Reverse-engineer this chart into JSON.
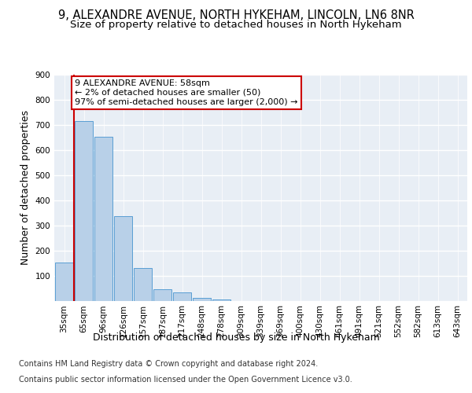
{
  "title_line1": "9, ALEXANDRE AVENUE, NORTH HYKEHAM, LINCOLN, LN6 8NR",
  "title_line2": "Size of property relative to detached houses in North Hykeham",
  "xlabel": "Distribution of detached houses by size in North Hykeham",
  "ylabel": "Number of detached properties",
  "categories": [
    "35sqm",
    "65sqm",
    "96sqm",
    "126sqm",
    "157sqm",
    "187sqm",
    "217sqm",
    "248sqm",
    "278sqm",
    "309sqm",
    "339sqm",
    "369sqm",
    "400sqm",
    "430sqm",
    "461sqm",
    "491sqm",
    "521sqm",
    "552sqm",
    "582sqm",
    "613sqm",
    "643sqm"
  ],
  "values": [
    152,
    715,
    652,
    338,
    130,
    45,
    32,
    12,
    5,
    0,
    0,
    0,
    0,
    0,
    0,
    0,
    0,
    0,
    0,
    0,
    0
  ],
  "bar_color": "#b8d0e8",
  "bar_edge_color": "#5a9fd4",
  "highlight_color": "#cc0000",
  "annotation_text": "9 ALEXANDRE AVENUE: 58sqm\n← 2% of detached houses are smaller (50)\n97% of semi-detached houses are larger (2,000) →",
  "annotation_box_color": "white",
  "annotation_box_edge_color": "#cc0000",
  "ylim": [
    0,
    900
  ],
  "yticks": [
    0,
    100,
    200,
    300,
    400,
    500,
    600,
    700,
    800,
    900
  ],
  "background_color": "#e8eef5",
  "footer_line1": "Contains HM Land Registry data © Crown copyright and database right 2024.",
  "footer_line2": "Contains public sector information licensed under the Open Government Licence v3.0.",
  "title_fontsize": 10.5,
  "subtitle_fontsize": 9.5,
  "axis_label_fontsize": 9,
  "tick_fontsize": 7.5,
  "annotation_fontsize": 8,
  "footer_fontsize": 7
}
